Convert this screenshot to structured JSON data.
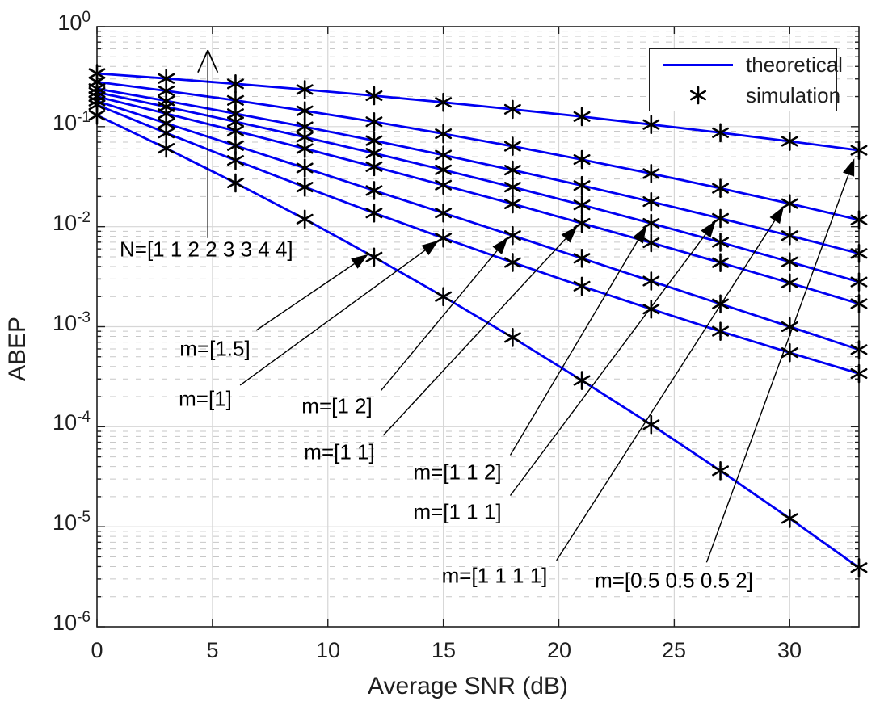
{
  "chart_data": {
    "type": "line",
    "title": "",
    "xlabel": "Average SNR (dB)",
    "ylabel": "ABEP",
    "xlim": [
      0,
      33
    ],
    "ylim": [
      1e-06,
      1
    ],
    "y_scale": "log10",
    "grid": {
      "major": true,
      "minor_dashed": true
    },
    "xticks": [
      0,
      5,
      10,
      15,
      20,
      25,
      30
    ],
    "ytick_base": "10",
    "ytick_exponents": [
      "0",
      "-1",
      "-2",
      "-3",
      "-4",
      "-5",
      "-6"
    ],
    "x": [
      0,
      3,
      6,
      9,
      12,
      15,
      18,
      21,
      24,
      27,
      30,
      33
    ],
    "series": [
      {
        "name": "m=[0.5 0.5 0.5 2]",
        "N": 4,
        "values": [
          0.34,
          0.303,
          0.268,
          0.235,
          0.204,
          0.175,
          0.149,
          0.126,
          0.105,
          0.087,
          0.0713,
          0.058
        ]
      },
      {
        "name": "m=[1 1 1 1]",
        "N": 4,
        "values": [
          0.28,
          0.228,
          0.183,
          0.144,
          0.112,
          0.085,
          0.0637,
          0.0469,
          0.034,
          0.0242,
          0.017,
          0.0117
        ]
      },
      {
        "name": "m=[1 1 1]",
        "N": 3,
        "values": [
          0.24,
          0.181,
          0.135,
          0.0997,
          0.0725,
          0.052,
          0.0368,
          0.0258,
          0.0178,
          0.0121,
          0.00813,
          0.0054
        ]
      },
      {
        "name": "m=[1 1 2]",
        "N": 3,
        "values": [
          0.22,
          0.158,
          0.112,
          0.0786,
          0.0543,
          0.037,
          0.0249,
          0.0165,
          0.0108,
          0.00698,
          0.00445,
          0.0028
        ]
      },
      {
        "name": "m=[1 1]",
        "N": 2,
        "values": [
          0.2,
          0.135,
          0.0907,
          0.0603,
          0.0398,
          0.026,
          0.0169,
          0.0108,
          0.00691,
          0.00437,
          0.00274,
          0.0017
        ]
      },
      {
        "name": "m=[1 2]",
        "N": 2,
        "values": [
          0.18,
          0.108,
          0.0646,
          0.0386,
          0.023,
          0.0137,
          0.00815,
          0.00483,
          0.00286,
          0.00169,
          0.001,
          0.00059
        ]
      },
      {
        "name": "m=[1]",
        "N": 1,
        "values": [
          0.165,
          0.0864,
          0.046,
          0.0249,
          0.0137,
          0.0077,
          0.00439,
          0.00254,
          0.0015,
          0.0009,
          0.00055,
          0.00034
        ]
      },
      {
        "name": "m=[1.5]",
        "N": 1,
        "values": [
          0.13,
          0.0608,
          0.0274,
          0.0119,
          0.00497,
          0.002,
          0.00078,
          0.00029,
          0.000105,
          3.63e-05,
          1.21e-05,
          3.9e-06
        ]
      }
    ],
    "legend": {
      "position": "top-right",
      "items": [
        {
          "label": "theoretical",
          "glyph": "blue-line"
        },
        {
          "label": "simulation",
          "glyph": "black-asterisk"
        }
      ]
    },
    "annotations": {
      "n_label": {
        "text": "N=[1 1 2 2 3 3 4 4]",
        "at": [
          0.98,
          0.0059
        ],
        "anchor": "start",
        "arrow": {
          "from": [
            4.8,
            0.0077
          ],
          "to": [
            4.8,
            0.58
          ],
          "head": "open"
        }
      },
      "m_labels": [
        {
          "text": "m=[1.5]",
          "at": [
            5.1,
            0.0006
          ],
          "arrow": {
            "from": [
              6.9,
              0.00092
            ],
            "to": [
              11.75,
              0.0053
            ],
            "head": "filled"
          }
        },
        {
          "text": "m=[1]",
          "at": [
            4.7,
            0.00019
          ],
          "arrow": {
            "from": [
              6.2,
              0.00026
            ],
            "to": [
              14.8,
              0.0073
            ],
            "head": "filled"
          }
        },
        {
          "text": "m=[1 2]",
          "at": [
            10.4,
            0.00016
          ],
          "arrow": {
            "from": [
              12.3,
              0.00023
            ],
            "to": [
              17.8,
              0.0078
            ],
            "head": "filled"
          }
        },
        {
          "text": "m=[1 1]",
          "at": [
            10.5,
            5.6e-05
          ],
          "arrow": {
            "from": [
              12.4,
              8.2e-05
            ],
            "to": [
              20.8,
              0.0101
            ],
            "head": "filled"
          }
        },
        {
          "text": "m=[1 1 2]",
          "at": [
            15.6,
            3.5e-05
          ],
          "arrow": {
            "from": [
              17.9,
              5.2e-05
            ],
            "to": [
              23.8,
              0.0102
            ],
            "head": "filled"
          }
        },
        {
          "text": "m=[1 1 1]",
          "at": [
            15.6,
            1.4e-05
          ],
          "arrow": {
            "from": [
              17.9,
              2.05e-05
            ],
            "to": [
              26.8,
              0.0115
            ],
            "head": "filled"
          }
        },
        {
          "text": "m=[1 1 1 1]",
          "at": [
            17.2,
            3.2e-06
          ],
          "arrow": {
            "from": [
              19.9,
              4.6e-06
            ],
            "to": [
              29.75,
              0.016
            ],
            "head": "filled"
          }
        },
        {
          "text": "m=[0.5 0.5 0.5 2]",
          "at": [
            25.0,
            2.9e-06
          ],
          "arrow": {
            "from": [
              26.4,
              4.4e-06
            ],
            "to": [
              32.8,
              0.048
            ],
            "head": "filled"
          }
        }
      ]
    },
    "colors": {
      "line": "#0000f2",
      "marker": "#000000",
      "axis": "#1f1f1f",
      "grid_major": "#d6d6d6",
      "grid_minor": "#b5b5b5",
      "background": "#ffffff"
    }
  }
}
